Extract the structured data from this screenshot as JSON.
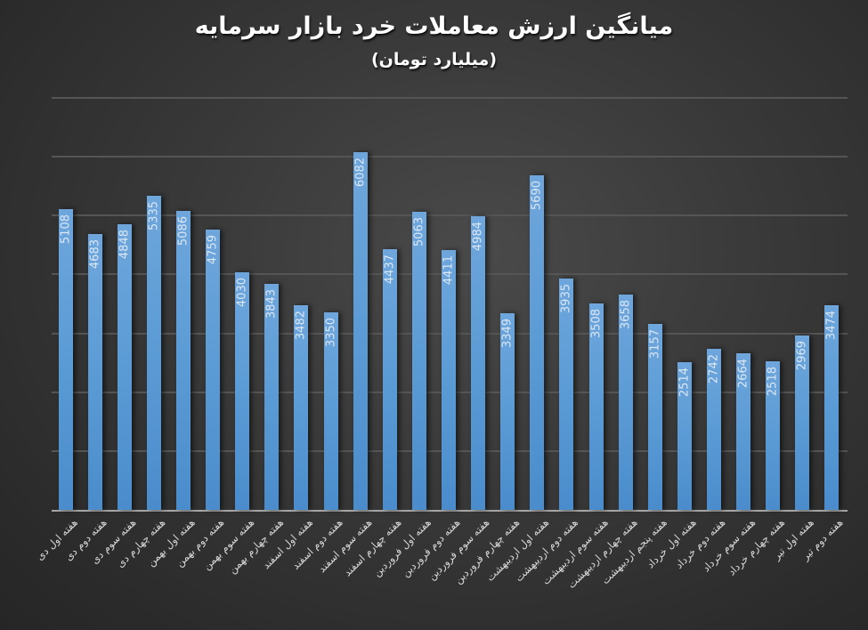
{
  "chart": {
    "title": "میانگین ارزش معاملات خرد بازار سرمایه",
    "subtitle": "(میلیارد تومان)"
  },
  "colors": {
    "bar": "#5b9bd5",
    "background": "#333333",
    "gridline": "#555555",
    "axis": "#a6a6a6",
    "text": "#ffffff"
  },
  "chart_data": {
    "type": "bar",
    "title": "میانگین ارزش معاملات خرد بازار سرمایه",
    "subtitle": "(میلیارد تومان)",
    "xlabel": "",
    "ylabel": "",
    "ylim": [
      0,
      7000
    ],
    "grid": true,
    "gridline_step": 1000,
    "legend": null,
    "data_labels": true,
    "categories": [
      "هفته اول دی",
      "هفته دوم دی",
      "هفته سوم دی",
      "هفته چهارم دی",
      "هفته اول بهمن",
      "هفته دوم بهمن",
      "هفته سوم بهمن",
      "هفته چهارم بهمن",
      "هفته اول اسفند",
      "هفته دوم اسفند",
      "هفته سوم اسفند",
      "هفته چهارم اسفند",
      "هفته اول فروردین",
      "هفته دوم فروردین",
      "هفته سوم فروردین",
      "هفته چهارم فروردین",
      "هفته اول اردیبهشت",
      "هفته دوم اردیبهشت",
      "هفته سوم اردیبهشت",
      "هفته چهارم اردیبهشت",
      "هفته پنجم اردیبهشت",
      "هفته اول خرداد",
      "هفته دوم خرداد",
      "هفته سوم خرداد",
      "هفته چهارم خرداد",
      "هفته اول تیر",
      "هفته دوم تیر"
    ],
    "values": [
      5108,
      4683,
      4848,
      5335,
      5086,
      4759,
      4030,
      3843,
      3482,
      3350,
      6082,
      4437,
      5063,
      4411,
      4984,
      3349,
      5690,
      3935,
      3508,
      3658,
      3157,
      2514,
      2742,
      2664,
      2518,
      2969,
      3474
    ]
  }
}
